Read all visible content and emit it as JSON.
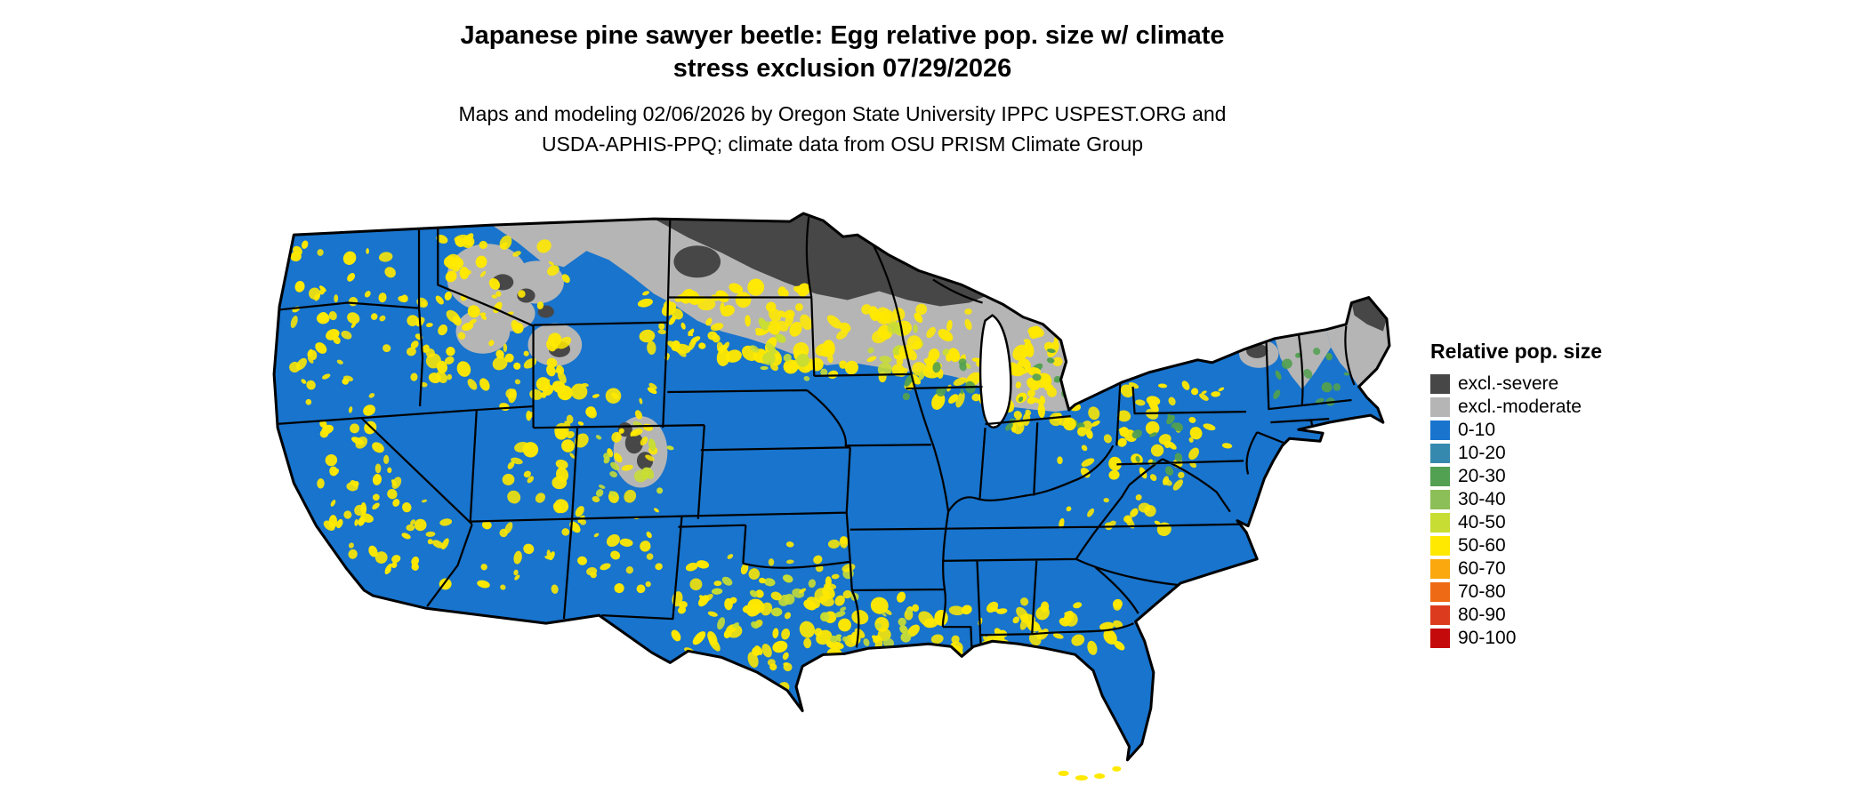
{
  "header": {
    "title_line1": "Japanese pine sawyer beetle: Egg relative pop. size w/ climate",
    "title_line2": "stress exclusion 07/29/2026",
    "subtitle_line1": "Maps and modeling 02/06/2026 by Oregon State University IPPC USPEST.ORG and",
    "subtitle_line2": "USDA-APHIS-PPQ; climate data from OSU PRISM Climate Group"
  },
  "legend": {
    "title": "Relative pop. size",
    "items": [
      {
        "label": "excl.-severe",
        "color": "#474747"
      },
      {
        "label": "excl.-moderate",
        "color": "#b5b5b5"
      },
      {
        "label": "0-10",
        "color": "#1874cd"
      },
      {
        "label": "10-20",
        "color": "#3589ae"
      },
      {
        "label": "20-30",
        "color": "#52a051"
      },
      {
        "label": "30-40",
        "color": "#8cbf57"
      },
      {
        "label": "40-50",
        "color": "#c8dd33"
      },
      {
        "label": "50-60",
        "color": "#ffe900"
      },
      {
        "label": "60-70",
        "color": "#fba80f"
      },
      {
        "label": "70-80",
        "color": "#ef6a14"
      },
      {
        "label": "80-90",
        "color": "#dd3b1e"
      },
      {
        "label": "90-100",
        "color": "#c40a0a"
      }
    ]
  },
  "map": {
    "base_value": "0-10",
    "description": "Continental US raster map: mostly 0-10 (blue); excl.-moderate gray band across the northern plains, Great Lakes and northern New England; excl.-severe dark core over northern MN/WI/MI-UP and northern Maine; 40-60 yellow mottling over western mountain ranges, the plains transition band, the Appalachians and the Gulf Coast states.",
    "speckle_seed": 42,
    "speckle_fields": [
      [
        30,
        50,
        110,
        190,
        "50-60",
        48,
        3,
        8
      ],
      [
        55,
        250,
        90,
        120,
        "50-60",
        34,
        3,
        8
      ],
      [
        90,
        340,
        110,
        95,
        "50-60",
        24,
        3,
        7
      ],
      [
        150,
        100,
        60,
        110,
        "50-60",
        18,
        3,
        7
      ],
      [
        185,
        40,
        150,
        170,
        "50-60",
        70,
        3,
        9
      ],
      [
        250,
        200,
        180,
        120,
        "50-60",
        52,
        3,
        9
      ],
      [
        240,
        330,
        200,
        115,
        "50-60",
        44,
        3,
        8
      ],
      [
        360,
        250,
        90,
        90,
        "40-50",
        16,
        3,
        7
      ],
      [
        420,
        100,
        180,
        80,
        "50-60",
        46,
        4,
        10
      ],
      [
        540,
        120,
        240,
        85,
        "50-60",
        60,
        4,
        10
      ],
      [
        540,
        135,
        240,
        70,
        "40-50",
        22,
        3,
        8
      ],
      [
        700,
        150,
        190,
        80,
        "50-60",
        46,
        4,
        10
      ],
      [
        700,
        160,
        180,
        70,
        "20-30",
        16,
        3,
        7
      ],
      [
        790,
        190,
        130,
        70,
        "50-60",
        32,
        3,
        9
      ],
      [
        800,
        200,
        110,
        60,
        "20-30",
        10,
        3,
        7
      ],
      [
        450,
        440,
        330,
        80,
        "50-60",
        70,
        4,
        10
      ],
      [
        480,
        420,
        200,
        60,
        "40-50",
        18,
        3,
        8
      ],
      [
        760,
        450,
        190,
        60,
        "50-60",
        42,
        4,
        9
      ],
      [
        470,
        380,
        180,
        70,
        "50-60",
        26,
        3,
        8
      ],
      [
        540,
        490,
        140,
        70,
        "50-60",
        20,
        3,
        8
      ],
      [
        880,
        250,
        140,
        130,
        "50-60",
        40,
        3,
        8
      ],
      [
        940,
        210,
        130,
        90,
        "50-60",
        28,
        3,
        8
      ],
      [
        950,
        230,
        100,
        80,
        "20-30",
        10,
        3,
        6
      ],
      [
        1120,
        160,
        80,
        70,
        "20-30",
        12,
        3,
        6
      ],
      [
        460,
        130,
        50,
        45,
        "50-60",
        10,
        3,
        6
      ],
      [
        620,
        455,
        120,
        50,
        "40-50",
        12,
        3,
        7
      ]
    ]
  }
}
